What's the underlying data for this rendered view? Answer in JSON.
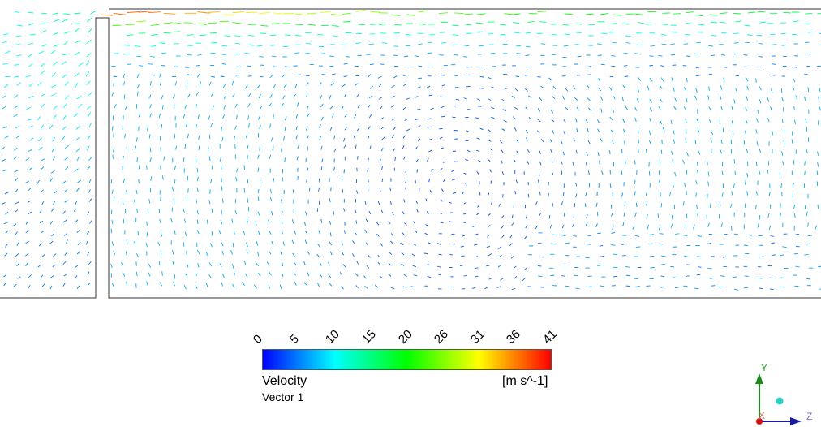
{
  "legend": {
    "title": "Velocity",
    "subtitle": "Vector 1",
    "units": "[m s^-1]",
    "ticks": [
      "0",
      "5",
      "10",
      "15",
      "20",
      "26",
      "31",
      "36",
      "41"
    ],
    "colormap": [
      "#0000ff",
      "#0080ff",
      "#00ffff",
      "#00ff80",
      "#00ff00",
      "#80ff00",
      "#ffff00",
      "#ff8000",
      "#ff0000"
    ]
  },
  "axes": {
    "x": "X",
    "y": "Y",
    "z": "Z"
  },
  "colors": {
    "outline": "#333333",
    "background": "#ffffff"
  }
}
